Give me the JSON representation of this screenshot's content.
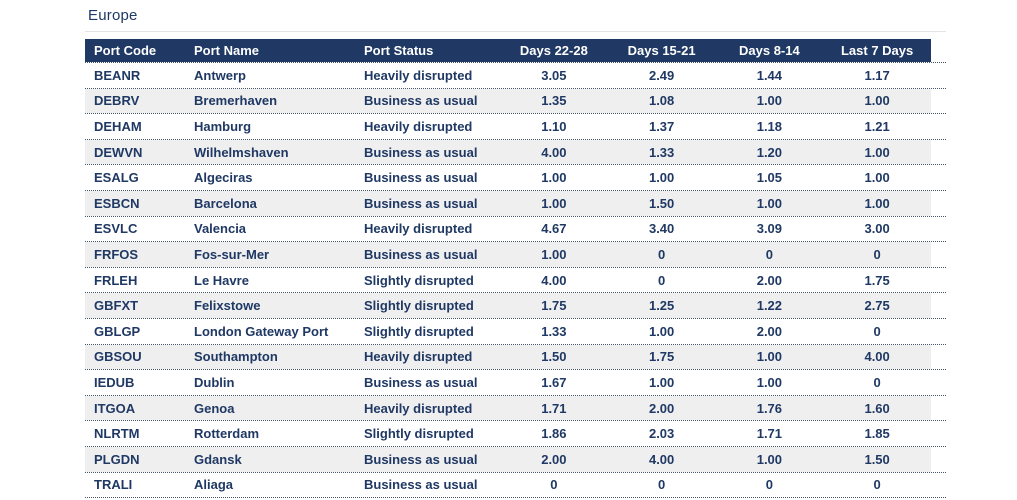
{
  "title": "Europe",
  "colors": {
    "header_background": "#1F3864",
    "header_text": "#FFFFFF",
    "body_text": "#1F3864",
    "stripe": "#EFEFEF",
    "grid_dots": "#44546A"
  },
  "table": {
    "columns": [
      {
        "label": "Port Code",
        "align": "left"
      },
      {
        "label": "Port Name",
        "align": "left"
      },
      {
        "label": "Port Status",
        "align": "left"
      },
      {
        "label": "Days 22-28",
        "align": "center"
      },
      {
        "label": "Days 15-21",
        "align": "center"
      },
      {
        "label": "Days 8-14",
        "align": "center"
      },
      {
        "label": "Last 7 Days",
        "align": "center"
      }
    ],
    "rows": [
      {
        "port_code": "BEANR",
        "port_name": "Antwerp",
        "port_status": "Heavily disrupted",
        "days_22_28": "3.05",
        "days_15_21": "2.49",
        "days_8_14": "1.44",
        "last_7_days": "1.17"
      },
      {
        "port_code": "DEBRV",
        "port_name": "Bremerhaven",
        "port_status": "Business as usual",
        "days_22_28": "1.35",
        "days_15_21": "1.08",
        "days_8_14": "1.00",
        "last_7_days": "1.00"
      },
      {
        "port_code": "DEHAM",
        "port_name": "Hamburg",
        "port_status": "Heavily disrupted",
        "days_22_28": "1.10",
        "days_15_21": "1.37",
        "days_8_14": "1.18",
        "last_7_days": "1.21"
      },
      {
        "port_code": "DEWVN",
        "port_name": "Wilhelmshaven",
        "port_status": "Business as usual",
        "days_22_28": "4.00",
        "days_15_21": "1.33",
        "days_8_14": "1.20",
        "last_7_days": "1.00"
      },
      {
        "port_code": "ESALG",
        "port_name": "Algeciras",
        "port_status": "Business as usual",
        "days_22_28": "1.00",
        "days_15_21": "1.00",
        "days_8_14": "1.05",
        "last_7_days": "1.00"
      },
      {
        "port_code": "ESBCN",
        "port_name": "Barcelona",
        "port_status": "Business as usual",
        "days_22_28": "1.00",
        "days_15_21": "1.50",
        "days_8_14": "1.00",
        "last_7_days": "1.00"
      },
      {
        "port_code": "ESVLC",
        "port_name": "Valencia",
        "port_status": "Heavily disrupted",
        "days_22_28": "4.67",
        "days_15_21": "3.40",
        "days_8_14": "3.09",
        "last_7_days": "3.00"
      },
      {
        "port_code": "FRFOS",
        "port_name": "Fos-sur-Mer",
        "port_status": "Business as usual",
        "days_22_28": "1.00",
        "days_15_21": "0",
        "days_8_14": "0",
        "last_7_days": "0"
      },
      {
        "port_code": "FRLEH",
        "port_name": "Le Havre",
        "port_status": "Slightly disrupted",
        "days_22_28": "4.00",
        "days_15_21": "0",
        "days_8_14": "2.00",
        "last_7_days": "1.75"
      },
      {
        "port_code": "GBFXT",
        "port_name": "Felixstowe",
        "port_status": "Slightly disrupted",
        "days_22_28": "1.75",
        "days_15_21": "1.25",
        "days_8_14": "1.22",
        "last_7_days": "2.75"
      },
      {
        "port_code": "GBLGP",
        "port_name": "London Gateway Port",
        "port_status": "Slightly disrupted",
        "days_22_28": "1.33",
        "days_15_21": "1.00",
        "days_8_14": "2.00",
        "last_7_days": "0"
      },
      {
        "port_code": "GBSOU",
        "port_name": "Southampton",
        "port_status": "Heavily disrupted",
        "days_22_28": "1.50",
        "days_15_21": "1.75",
        "days_8_14": "1.00",
        "last_7_days": "4.00"
      },
      {
        "port_code": "IEDUB",
        "port_name": "Dublin",
        "port_status": "Business as usual",
        "days_22_28": "1.67",
        "days_15_21": "1.00",
        "days_8_14": "1.00",
        "last_7_days": "0"
      },
      {
        "port_code": "ITGOA",
        "port_name": "Genoa",
        "port_status": "Heavily disrupted",
        "days_22_28": "1.71",
        "days_15_21": "2.00",
        "days_8_14": "1.76",
        "last_7_days": "1.60"
      },
      {
        "port_code": "NLRTM",
        "port_name": "Rotterdam",
        "port_status": "Slightly disrupted",
        "days_22_28": "1.86",
        "days_15_21": "2.03",
        "days_8_14": "1.71",
        "last_7_days": "1.85"
      },
      {
        "port_code": "PLGDN",
        "port_name": "Gdansk",
        "port_status": "Business as usual",
        "days_22_28": "2.00",
        "days_15_21": "4.00",
        "days_8_14": "1.00",
        "last_7_days": "1.50"
      },
      {
        "port_code": "TRALI",
        "port_name": "Aliaga",
        "port_status": "Business as usual",
        "days_22_28": "0",
        "days_15_21": "0",
        "days_8_14": "0",
        "last_7_days": "0"
      }
    ]
  }
}
